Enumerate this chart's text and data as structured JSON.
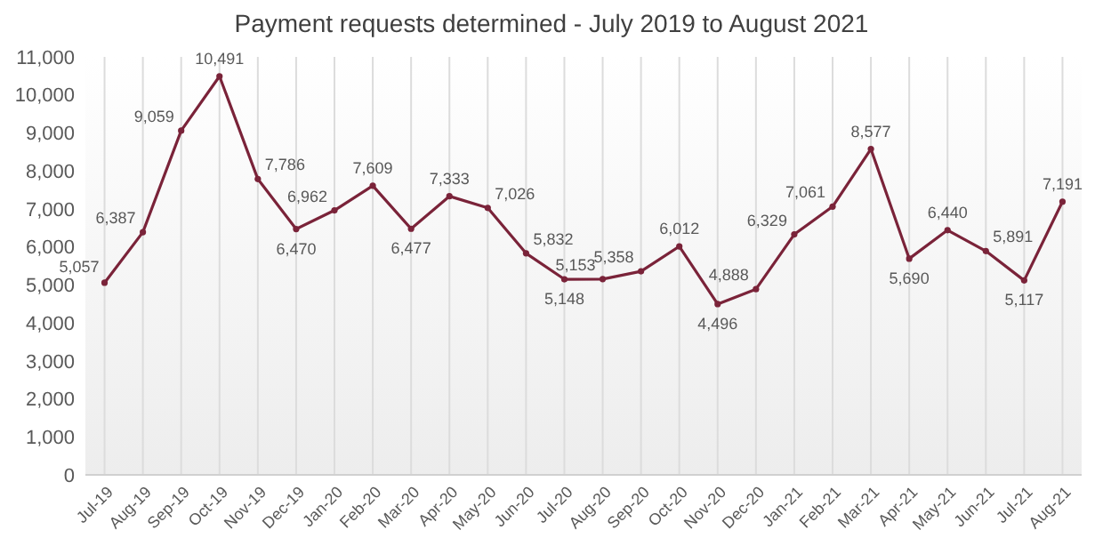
{
  "chart_data": {
    "type": "line",
    "title": "Payment requests determined - July 2019 to August 2021",
    "categories": [
      "Jul-19",
      "Aug-19",
      "Sep-19",
      "Oct-19",
      "Nov-19",
      "Dec-19",
      "Jan-20",
      "Feb-20",
      "Mar-20",
      "Apr-20",
      "May-20",
      "Jun-20",
      "Jul-20",
      "Aug-20",
      "Sep-20",
      "Oct-20",
      "Nov-20",
      "Dec-20",
      "Jan-21",
      "Feb-21",
      "Mar-21",
      "Apr-21",
      "May-21",
      "Jun-21",
      "Jul-21",
      "Aug-21"
    ],
    "series": [
      {
        "color": "#7a2339",
        "values": [
          5057,
          6387,
          9059,
          10491,
          7786,
          6470,
          6962,
          7609,
          6477,
          7333,
          7026,
          5832,
          5148,
          5153,
          5358,
          6012,
          4496,
          4888,
          6329,
          7061,
          8577,
          5690,
          6440,
          5891,
          5117,
          7191
        ],
        "value_labels": [
          "5,057",
          "6,387",
          "9,059",
          "10,491",
          "7,786",
          "6,470",
          "6,962",
          "7,609",
          "6,477",
          "7,333",
          "7,026",
          "5,832",
          "5,148",
          "5,153",
          "5,358",
          "6,012",
          "4,496",
          "4,888",
          "6,329",
          "7,061",
          "8,577",
          "5,690",
          "6,440",
          "5,891",
          "5,117",
          "7,191"
        ]
      }
    ],
    "ylim": [
      0,
      11000
    ],
    "yticks": [
      {
        "value": 0,
        "label": "0"
      },
      {
        "value": 1000,
        "label": "1,000"
      },
      {
        "value": 2000,
        "label": "2,000"
      },
      {
        "value": 3000,
        "label": "3,000"
      },
      {
        "value": 4000,
        "label": "4,000"
      },
      {
        "value": 5000,
        "label": "5,000"
      },
      {
        "value": 6000,
        "label": "6,000"
      },
      {
        "value": 7000,
        "label": "7,000"
      },
      {
        "value": 8000,
        "label": "8,000"
      },
      {
        "value": 9000,
        "label": "9,000"
      },
      {
        "value": 10000,
        "label": "10,000"
      },
      {
        "value": 11000,
        "label": "11,000"
      }
    ],
    "grid": "x",
    "marker": "circle",
    "line_style": "solid"
  }
}
